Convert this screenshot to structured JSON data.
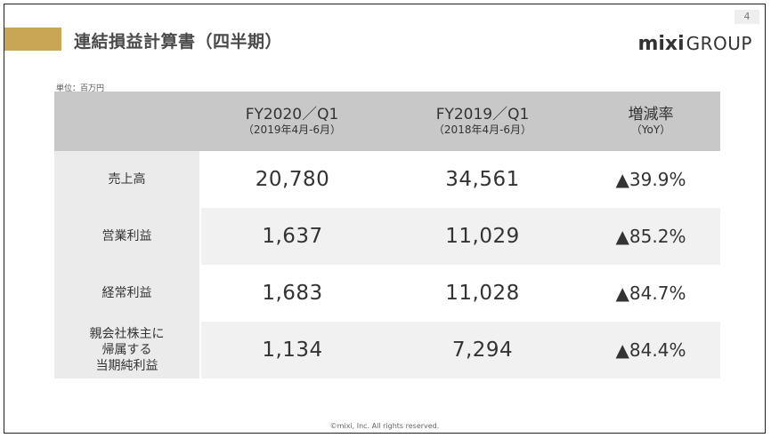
{
  "page_number": "4",
  "title": "連結損益計算書（四半期）",
  "logo": {
    "mixi": "mixi",
    "group": "GROUP"
  },
  "unit_label": "単位：百万円",
  "columns": [
    {
      "main": "FY2020／Q1",
      "sub": "（2019年4月-6月）"
    },
    {
      "main": "FY2019／Q1",
      "sub": "（2018年4月-6月）"
    },
    {
      "main": "増減率",
      "sub": "（YoY）"
    }
  ],
  "rows": [
    {
      "label": "売上高",
      "fy2020": "20,780",
      "fy2019": "34,561",
      "yoy": "▲39.9%"
    },
    {
      "label": "営業利益",
      "fy2020": "1,637",
      "fy2019": "11,029",
      "yoy": "▲85.2%"
    },
    {
      "label": "経常利益",
      "fy2020": "1,683",
      "fy2019": "11,028",
      "yoy": "▲84.7%"
    },
    {
      "label": "親会社株主に\n帰属する\n当期純利益",
      "fy2020": "1,134",
      "fy2019": "7,294",
      "yoy": "▲84.4%"
    }
  ],
  "footer": "©mixi, Inc. All rights reserved.",
  "colors": {
    "accent": "#c9a655",
    "header_fill": "#c8c8c8",
    "label_fill": "#ebebeb",
    "row_alt_fill": "#f1f1f1"
  }
}
